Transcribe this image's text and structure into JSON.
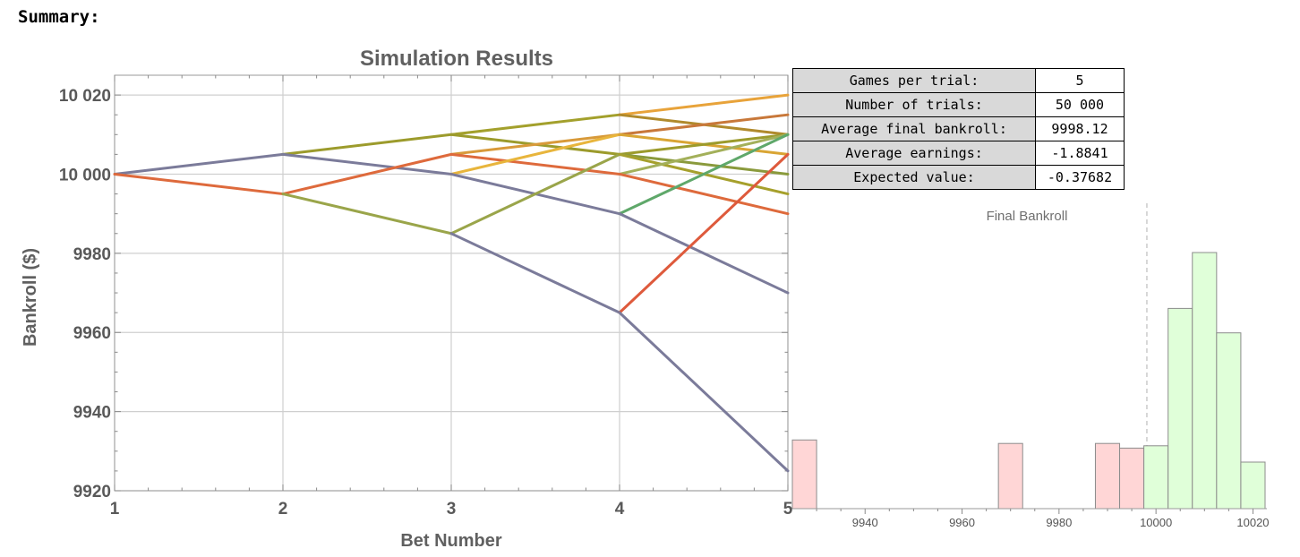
{
  "summary_heading": "Summary:",
  "stats_table": [
    {
      "label": "Games per trial:",
      "value": "5"
    },
    {
      "label": "Number of trials:",
      "value": "50 000"
    },
    {
      "label": "Average final bankroll:",
      "value": "9998.12"
    },
    {
      "label": "Average earnings:",
      "value": "-1.8841"
    },
    {
      "label": "Expected value:",
      "value": "-0.37682"
    }
  ],
  "chart_data": [
    {
      "type": "line",
      "title": "Simulation Results",
      "xlabel": "Bet Number",
      "ylabel": "Bankroll ($)",
      "xlim": [
        1,
        5
      ],
      "ylim": [
        9920,
        10025
      ],
      "x_ticks": [
        1,
        2,
        3,
        4,
        5
      ],
      "y_ticks": [
        9920,
        9940,
        9960,
        9980,
        10000,
        10020
      ],
      "y_tick_labels": [
        "9920",
        "9940",
        "9960",
        "9980",
        "10 000",
        "10 020"
      ],
      "grid": true,
      "legend": "none",
      "segments": [
        {
          "x": [
            1,
            2
          ],
          "y": [
            10000,
            10005
          ],
          "color": "#7b7b9a"
        },
        {
          "x": [
            1,
            2
          ],
          "y": [
            10000,
            9995
          ],
          "color": "#de6a3c"
        },
        {
          "x": [
            2,
            3
          ],
          "y": [
            10005,
            10010
          ],
          "color": "#9c9b2c"
        },
        {
          "x": [
            2,
            3
          ],
          "y": [
            10005,
            10000
          ],
          "color": "#7b7b9a"
        },
        {
          "x": [
            2,
            3
          ],
          "y": [
            9995,
            10005
          ],
          "color": "#de6a3c"
        },
        {
          "x": [
            2,
            3
          ],
          "y": [
            9995,
            9985
          ],
          "color": "#9aa54a"
        },
        {
          "x": [
            3,
            4
          ],
          "y": [
            10010,
            10015
          ],
          "color": "#a3a02c"
        },
        {
          "x": [
            3,
            4
          ],
          "y": [
            10010,
            10005
          ],
          "color": "#9c9b2c"
        },
        {
          "x": [
            3,
            4
          ],
          "y": [
            10005,
            10010
          ],
          "color": "#d89a3a"
        },
        {
          "x": [
            3,
            4
          ],
          "y": [
            10005,
            10000
          ],
          "color": "#de6a3c"
        },
        {
          "x": [
            3,
            4
          ],
          "y": [
            10000,
            10010
          ],
          "color": "#e8b53c"
        },
        {
          "x": [
            3,
            4
          ],
          "y": [
            10000,
            9990
          ],
          "color": "#7b7b9a"
        },
        {
          "x": [
            3,
            4
          ],
          "y": [
            9985,
            10005
          ],
          "color": "#9aa54a"
        },
        {
          "x": [
            3,
            4
          ],
          "y": [
            9985,
            9965
          ],
          "color": "#7b7b9a"
        },
        {
          "x": [
            4,
            5
          ],
          "y": [
            10015,
            10020
          ],
          "color": "#e8a33a"
        },
        {
          "x": [
            4,
            5
          ],
          "y": [
            10015,
            10010
          ],
          "color": "#b08a2c"
        },
        {
          "x": [
            4,
            5
          ],
          "y": [
            10010,
            10015
          ],
          "color": "#c8783a"
        },
        {
          "x": [
            4,
            5
          ],
          "y": [
            10010,
            10005
          ],
          "color": "#d9a534"
        },
        {
          "x": [
            4,
            5
          ],
          "y": [
            10005,
            10010
          ],
          "color": "#9c9b2c"
        },
        {
          "x": [
            4,
            5
          ],
          "y": [
            10005,
            10000
          ],
          "color": "#8a9a3c"
        },
        {
          "x": [
            4,
            5
          ],
          "y": [
            10005,
            9995
          ],
          "color": "#a6a02c"
        },
        {
          "x": [
            4,
            5
          ],
          "y": [
            10000,
            10010
          ],
          "color": "#a3b05a"
        },
        {
          "x": [
            4,
            5
          ],
          "y": [
            10000,
            9990
          ],
          "color": "#de6a3c"
        },
        {
          "x": [
            4,
            5
          ],
          "y": [
            9990,
            10010
          ],
          "color": "#5fa86a"
        },
        {
          "x": [
            4,
            5
          ],
          "y": [
            9990,
            9970
          ],
          "color": "#7b7b9a"
        },
        {
          "x": [
            4,
            5
          ],
          "y": [
            9965,
            10005
          ],
          "color": "#de5a3c"
        },
        {
          "x": [
            4,
            5
          ],
          "y": [
            9965,
            9925
          ],
          "color": "#7b7b9a"
        }
      ]
    },
    {
      "type": "bar",
      "title": "Final Bankroll",
      "xlabel": "",
      "ylabel": "",
      "xlim": [
        9925,
        10022.5
      ],
      "x_ticks": [
        9940,
        9960,
        9980,
        10000,
        10020
      ],
      "x_tick_labels": [
        "9940",
        "9960",
        "9980",
        "10000",
        "10020"
      ],
      "reference_line_x": 9998.12,
      "bars": [
        {
          "x0": 9925,
          "x1": 9930,
          "value": 0.59,
          "color": "#ffd6d6"
        },
        {
          "x0": 9967.5,
          "x1": 9972.5,
          "value": 0.56,
          "color": "#ffd6d6"
        },
        {
          "x0": 9987.5,
          "x1": 9992.5,
          "value": 0.56,
          "color": "#ffd6d6"
        },
        {
          "x0": 9992.5,
          "x1": 9997.5,
          "value": 0.52,
          "color": "#ffd6d6"
        },
        {
          "x0": 9997.5,
          "x1": 10002.5,
          "value": 0.54,
          "color": "#e0ffd9"
        },
        {
          "x0": 10002.5,
          "x1": 10007.5,
          "value": 1.72,
          "color": "#e0ffd9"
        },
        {
          "x0": 10007.5,
          "x1": 10012.5,
          "value": 2.2,
          "color": "#e0ffd9"
        },
        {
          "x0": 10012.5,
          "x1": 10017.5,
          "value": 1.51,
          "color": "#e0ffd9"
        },
        {
          "x0": 10017.5,
          "x1": 10022.5,
          "value": 0.4,
          "color": "#e0ffd9"
        }
      ]
    }
  ]
}
